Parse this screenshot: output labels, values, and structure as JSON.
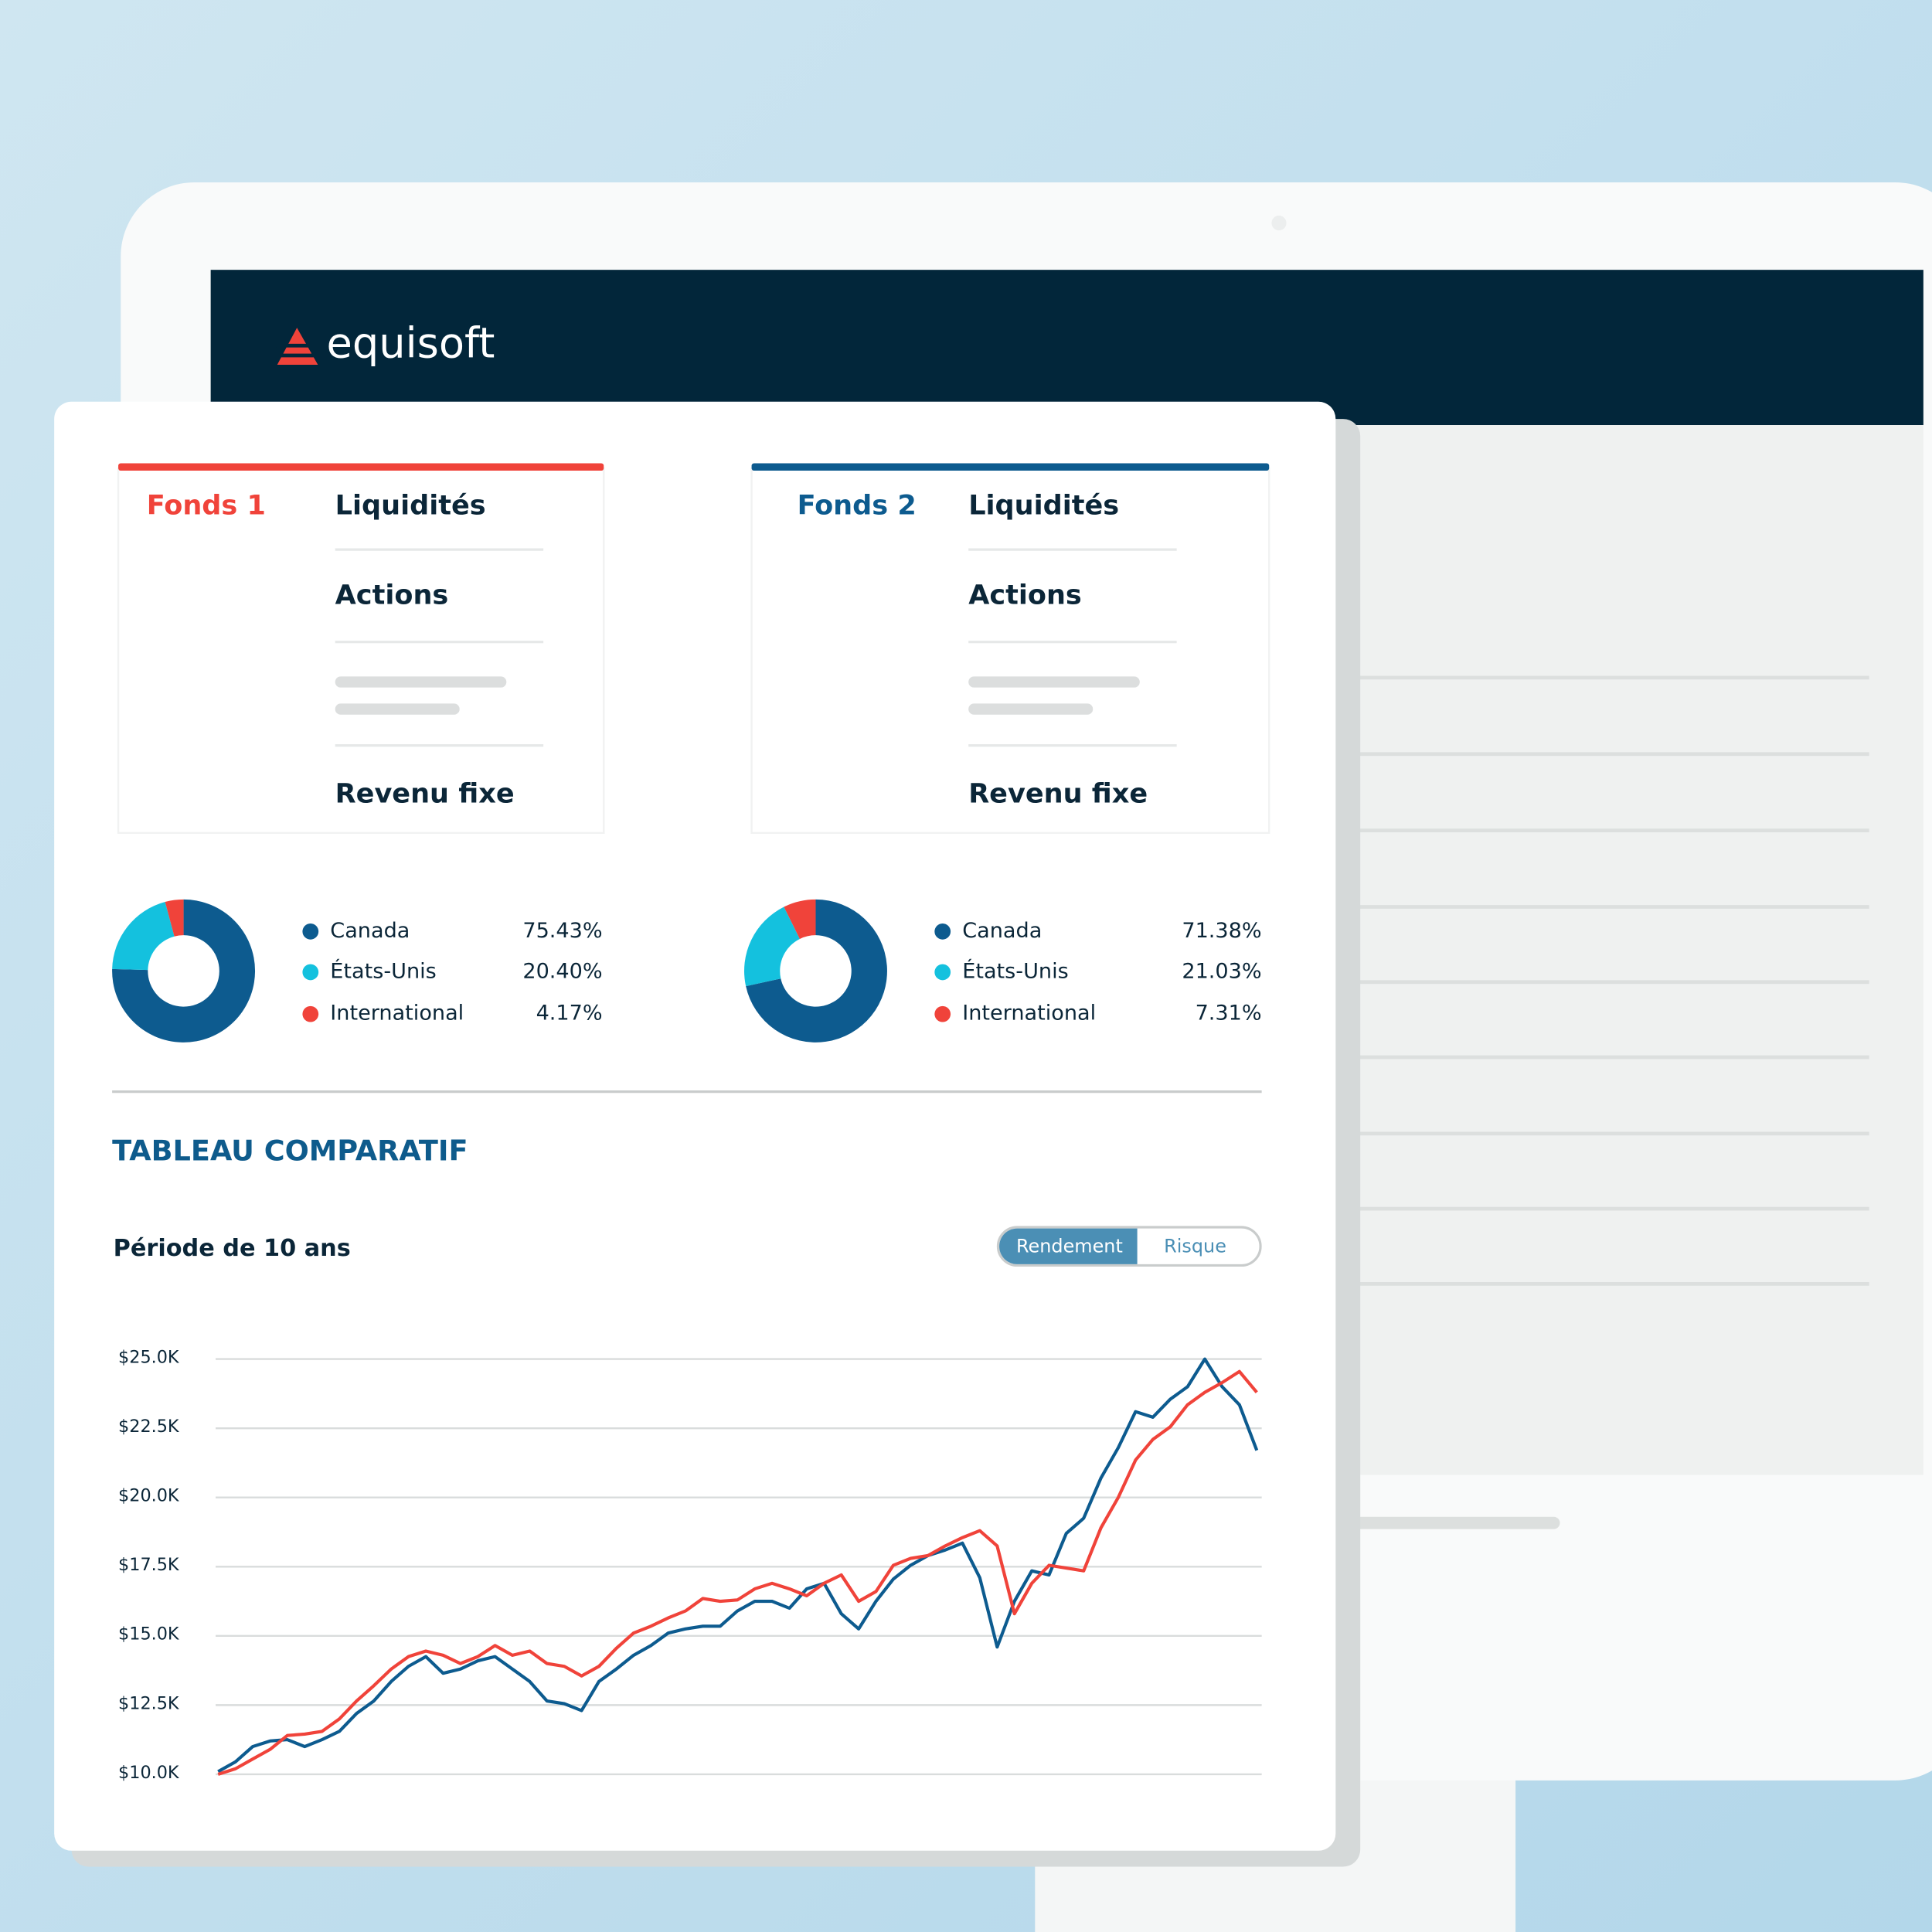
{
  "header": {
    "logo": "equisoft"
  },
  "funds": [
    {
      "name": "Fonds 1",
      "color": "#f0433a",
      "items": [
        "Liquidités",
        "Actions",
        "Revenu fixe"
      ]
    },
    {
      "name": "Fonds 2",
      "color": "#0d5b8f",
      "items": [
        "Liquidités",
        "Actions",
        "Revenu fixe"
      ]
    }
  ],
  "section_title": "TABLEAU COMPARATIF",
  "toggle": [
    "Rendement",
    "Risque"
  ],
  "chart_data": [
    {
      "type": "pie",
      "categories": [
        "Canada",
        "États-Unis",
        "International"
      ],
      "values": [
        75.43,
        20.4,
        4.17
      ],
      "value_labels": [
        "75.43%",
        "20.40%",
        "4.17%"
      ],
      "colors": [
        "#0d5b8f",
        "#14c1de",
        "#f0433a"
      ]
    },
    {
      "type": "pie",
      "categories": [
        "Canada",
        "États-Unis",
        "International"
      ],
      "values": [
        71.38,
        21.03,
        7.31
      ],
      "value_labels": [
        "71.38%",
        "21.03%",
        "7.31%"
      ],
      "colors": [
        "#0d5b8f",
        "#14c1de",
        "#f0433a"
      ]
    },
    {
      "type": "line",
      "title": "Période de 10 ans",
      "ylim": [
        10000,
        25000
      ],
      "yticks": [
        {
          "value": 10000,
          "label": "$10.0K"
        },
        {
          "value": 12500,
          "label": "$12.5K"
        },
        {
          "value": 15000,
          "label": "$15.0K"
        },
        {
          "value": 17500,
          "label": "$17.5K"
        },
        {
          "value": 20000,
          "label": "$20.0K"
        },
        {
          "value": 22500,
          "label": "$22.5K"
        },
        {
          "value": 25000,
          "label": "$25.0K"
        }
      ],
      "grid": true,
      "series": [
        {
          "color": "#0d5b8f",
          "values": [
            10100,
            10450,
            11000,
            11200,
            11250,
            11000,
            11250,
            11550,
            12200,
            12650,
            13350,
            13900,
            14250,
            13650,
            13800,
            14100,
            14250,
            13800,
            13350,
            12650,
            12550,
            12300,
            13350,
            13800,
            14300,
            14650,
            15100,
            15250,
            15350,
            15350,
            15900,
            16250,
            16250,
            16000,
            16700,
            16900,
            15800,
            15250,
            16250,
            17050,
            17550,
            17900,
            18100,
            18350,
            17100,
            14600,
            16250,
            17350,
            17200,
            18700,
            19250,
            20700,
            21800,
            23100,
            22900,
            23550,
            24000,
            25000,
            24000,
            23350,
            21700
          ]
        },
        {
          "color": "#f0433a",
          "values": [
            10000,
            10200,
            10550,
            10900,
            11400,
            11450,
            11550,
            12000,
            12650,
            13200,
            13800,
            14250,
            14450,
            14300,
            14000,
            14250,
            14650,
            14300,
            14450,
            14000,
            13900,
            13550,
            13900,
            14550,
            15100,
            15350,
            15650,
            15900,
            16350,
            16250,
            16300,
            16700,
            16900,
            16700,
            16450,
            16900,
            17200,
            16250,
            16600,
            17550,
            17800,
            17900,
            18250,
            18550,
            18800,
            18250,
            15800,
            16900,
            17550,
            17450,
            17350,
            18900,
            20000,
            21350,
            22100,
            22550,
            23350,
            23800,
            24150,
            24550,
            23800
          ]
        }
      ]
    }
  ]
}
